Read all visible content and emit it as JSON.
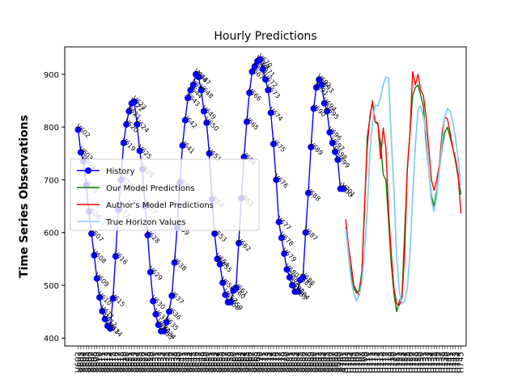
{
  "chart_data": {
    "type": "line",
    "title": "Hourly Predictions",
    "xlabel": "",
    "ylabel": "Time Series Observations",
    "ylim": [
      385,
      952
    ],
    "yticks": [
      400,
      500,
      600,
      700,
      800,
      900
    ],
    "grid": false,
    "legend_position": "center-left",
    "history_x_range": [
      602,
      701
    ],
    "forecast_x_range": [
      702,
      745
    ],
    "series": [
      {
        "name": "History",
        "color": "#0000ff",
        "marker": "circle",
        "x": [
          602,
          603,
          604,
          605,
          606,
          607,
          608,
          609,
          610,
          611,
          612,
          613,
          614,
          615,
          616,
          617,
          618,
          619,
          620,
          621,
          622,
          623,
          624,
          625,
          626,
          627,
          628,
          629,
          630,
          631,
          632,
          633,
          634,
          635,
          636,
          637,
          638,
          639,
          640,
          641,
          642,
          643,
          644,
          645,
          646,
          647,
          648,
          649,
          650,
          651,
          652,
          653,
          654,
          655,
          656,
          657,
          658,
          659,
          660,
          661,
          662,
          663,
          664,
          665,
          666,
          667,
          668,
          669,
          670,
          671,
          672,
          673,
          674,
          675,
          676,
          677,
          678,
          679,
          680,
          681,
          682,
          683,
          684,
          685,
          686,
          687,
          688,
          689,
          690,
          691,
          692,
          693,
          694,
          695,
          696,
          697,
          698,
          699,
          700,
          701
        ],
        "values": [
          795,
          752,
          735,
          690,
          640,
          598,
          557,
          513,
          477,
          451,
          436,
          423,
          418,
          475,
          555,
          643,
          700,
          770,
          805,
          830,
          845,
          848,
          805,
          755,
          720,
          650,
          595,
          525,
          470,
          445,
          425,
          413,
          413,
          430,
          450,
          480,
          543,
          610,
          695,
          765,
          813,
          855,
          870,
          880,
          900,
          895,
          870,
          830,
          808,
          750,
          663,
          598,
          550,
          540,
          505,
          482,
          468,
          468,
          490,
          495,
          580,
          665,
          743,
          810,
          865,
          905,
          915,
          925,
          928,
          910,
          890,
          870,
          827,
          768,
          700,
          620,
          590,
          560,
          530,
          515,
          500,
          488,
          488,
          510,
          515,
          600,
          675,
          762,
          835,
          875,
          890,
          880,
          845,
          830,
          790,
          770,
          753,
          738,
          683,
          683
        ]
      },
      {
        "name": "Our Model Predictions",
        "color": "#008000",
        "marker": "none",
        "x": [
          702,
          703,
          704,
          705,
          706,
          707,
          708,
          709,
          710,
          711,
          712,
          713,
          714,
          715,
          716,
          717,
          718,
          719,
          720,
          721,
          722,
          723,
          724,
          725,
          726,
          727,
          728,
          729,
          730,
          731,
          732,
          733,
          734,
          735,
          736,
          737,
          738,
          739,
          740,
          741,
          742,
          743,
          744,
          745
        ],
        "values": [
          610,
          560,
          525,
          495,
          485,
          490,
          525,
          640,
          780,
          815,
          850,
          810,
          805,
          770,
          710,
          700,
          620,
          540,
          485,
          450,
          470,
          480,
          600,
          720,
          790,
          860,
          875,
          880,
          860,
          840,
          770,
          720,
          670,
          650,
          680,
          720,
          760,
          790,
          800,
          780,
          760,
          735,
          705,
          672
        ]
      },
      {
        "name": "Author's Model Predictions",
        "color": "#ff0000",
        "marker": "none",
        "x": [
          702,
          703,
          704,
          705,
          706,
          707,
          708,
          709,
          710,
          711,
          712,
          713,
          714,
          715,
          716,
          717,
          718,
          719,
          720,
          721,
          722,
          723,
          724,
          725,
          726,
          727,
          728,
          729,
          730,
          731,
          732,
          733,
          734,
          735,
          736,
          737,
          738,
          739,
          740,
          741,
          742,
          743,
          744,
          745
        ],
        "values": [
          625,
          575,
          540,
          500,
          490,
          480,
          520,
          650,
          760,
          820,
          848,
          810,
          808,
          740,
          798,
          760,
          640,
          560,
          495,
          465,
          462,
          475,
          560,
          720,
          790,
          905,
          880,
          900,
          870,
          860,
          820,
          760,
          700,
          680,
          700,
          730,
          790,
          820,
          815,
          790,
          760,
          740,
          710,
          636
        ]
      },
      {
        "name": "True Horizon Values",
        "color": "#87ceeb",
        "marker": "none",
        "x": [
          702,
          703,
          704,
          705,
          706,
          707,
          708,
          709,
          710,
          711,
          712,
          713,
          714,
          715,
          716,
          717,
          718,
          719,
          720,
          721,
          722,
          723,
          724,
          725,
          726,
          727,
          728,
          729,
          730,
          731,
          732,
          733,
          734,
          735,
          736,
          737,
          738,
          739,
          740,
          741,
          742,
          743,
          744,
          745
        ],
        "values": [
          608,
          560,
          510,
          485,
          470,
          480,
          505,
          560,
          640,
          750,
          810,
          842,
          840,
          855,
          880,
          895,
          893,
          780,
          680,
          555,
          490,
          465,
          470,
          495,
          560,
          670,
          765,
          835,
          840,
          820,
          790,
          720,
          660,
          640,
          670,
          720,
          770,
          820,
          835,
          830,
          810,
          780,
          740,
          690
        ]
      }
    ]
  }
}
